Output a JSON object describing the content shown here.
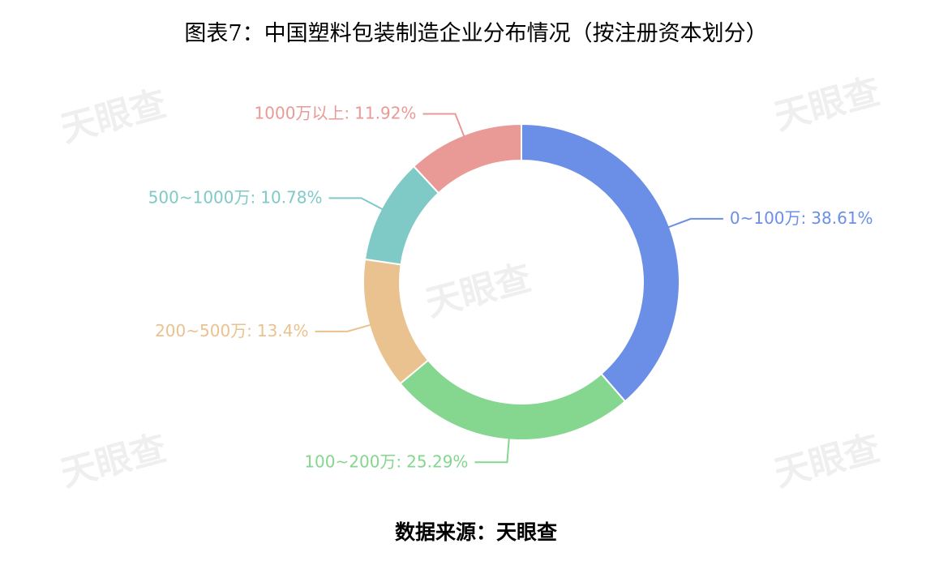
{
  "chart_data": {
    "type": "donut",
    "title": "图表7：中国塑料包装制造企业分布情况（按注册资本划分）",
    "source": "数据来源：天眼查",
    "watermark": "天眼查",
    "categories": [
      "0~100万:",
      "100~200万:",
      "200~500万:",
      "500~1000万:",
      "1000万以上:"
    ],
    "values": [
      38.61,
      25.29,
      13.4,
      10.78,
      11.92
    ],
    "value_labels": [
      "38.61%",
      "25.29%",
      "13.4%",
      "10.78%",
      "11.92%"
    ],
    "colors": [
      "#6b8fe6",
      "#85d68f",
      "#e9c28f",
      "#7fc9c6",
      "#e99a96"
    ]
  }
}
